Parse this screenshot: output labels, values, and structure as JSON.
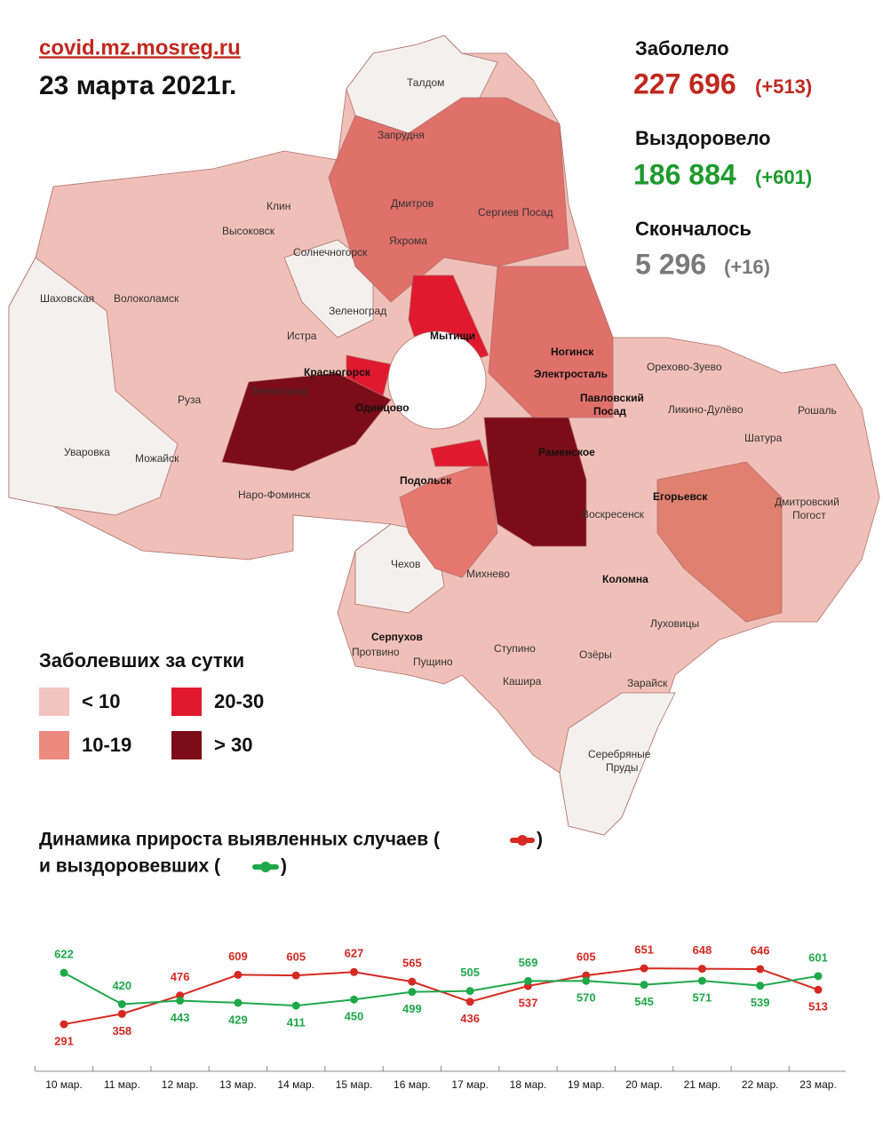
{
  "header": {
    "site": "covid.mz.mosreg.ru",
    "date": "23 марта 2021г."
  },
  "stats": [
    {
      "label": "Заболело",
      "value": "227 696",
      "delta": "(+513)"
    },
    {
      "label": "Выздоровело",
      "value": "186 884",
      "delta": "(+601)"
    },
    {
      "label": "Скончалось",
      "value": "5 296",
      "delta": "(+16)"
    }
  ],
  "legend": {
    "title": "Заболевших за сутки",
    "items": [
      {
        "label": "< 10",
        "color": "#f2c4bf"
      },
      {
        "label": "10-19",
        "color": "#ec8a80"
      },
      {
        "label": "20-30",
        "color": "#e0192e"
      },
      {
        "label": "> 30",
        "color": "#7c0c18"
      }
    ]
  },
  "map": {
    "labels": [
      "Талдом",
      "Запрудня",
      "Клин",
      "Дмитров",
      "Сергиев Посад",
      "Высоковск",
      "Яхрома",
      "Солнечногорск",
      "Шаховская",
      "Волоколамск",
      "Зеленоград",
      "Истра",
      "Мытищи",
      "Ногинск",
      "Орехово-Зуево",
      "Красногорск",
      "Электросталь",
      "Павловский",
      "Посад",
      "Звенигород",
      "Одинцово",
      "Руза",
      "Ликино-Дулёво",
      "Рошаль",
      "Раменское",
      "Уваровка",
      "Можайск",
      "Шатура",
      "Наро-Фоминск",
      "Подольск",
      "Егорьевск",
      "Дмитровский",
      "Погост",
      "Воскресенск",
      "Чехов",
      "Михнево",
      "Коломна",
      "Луховицы",
      "Серпухов",
      "Пущино",
      "Ступино",
      "Озёры",
      "Протвино",
      "Кашира",
      "Зарайск",
      "Серебряные",
      "Пруды"
    ]
  },
  "chart_data": {
    "type": "line",
    "title": [
      "Динамика прироста выявленных случаев (",
      ")",
      "и выздоровевших (",
      ")"
    ],
    "categories": [
      "10 мар.",
      "11 мар.",
      "12 мар.",
      "13 мар.",
      "14 мар.",
      "15 мар.",
      "16 мар.",
      "17 мар.",
      "18 мар.",
      "19 мар.",
      "20 мар.",
      "21 мар.",
      "22 мар.",
      "23 мар."
    ],
    "series": [
      {
        "color": "#d42a22",
        "values": [
          291,
          358,
          476,
          609,
          605,
          627,
          565,
          436,
          537,
          605,
          651,
          648,
          646,
          513
        ]
      },
      {
        "color": "#1fa84a",
        "values": [
          622,
          420,
          443,
          429,
          411,
          450,
          499,
          505,
          569,
          570,
          545,
          571,
          539,
          601
        ]
      }
    ]
  }
}
